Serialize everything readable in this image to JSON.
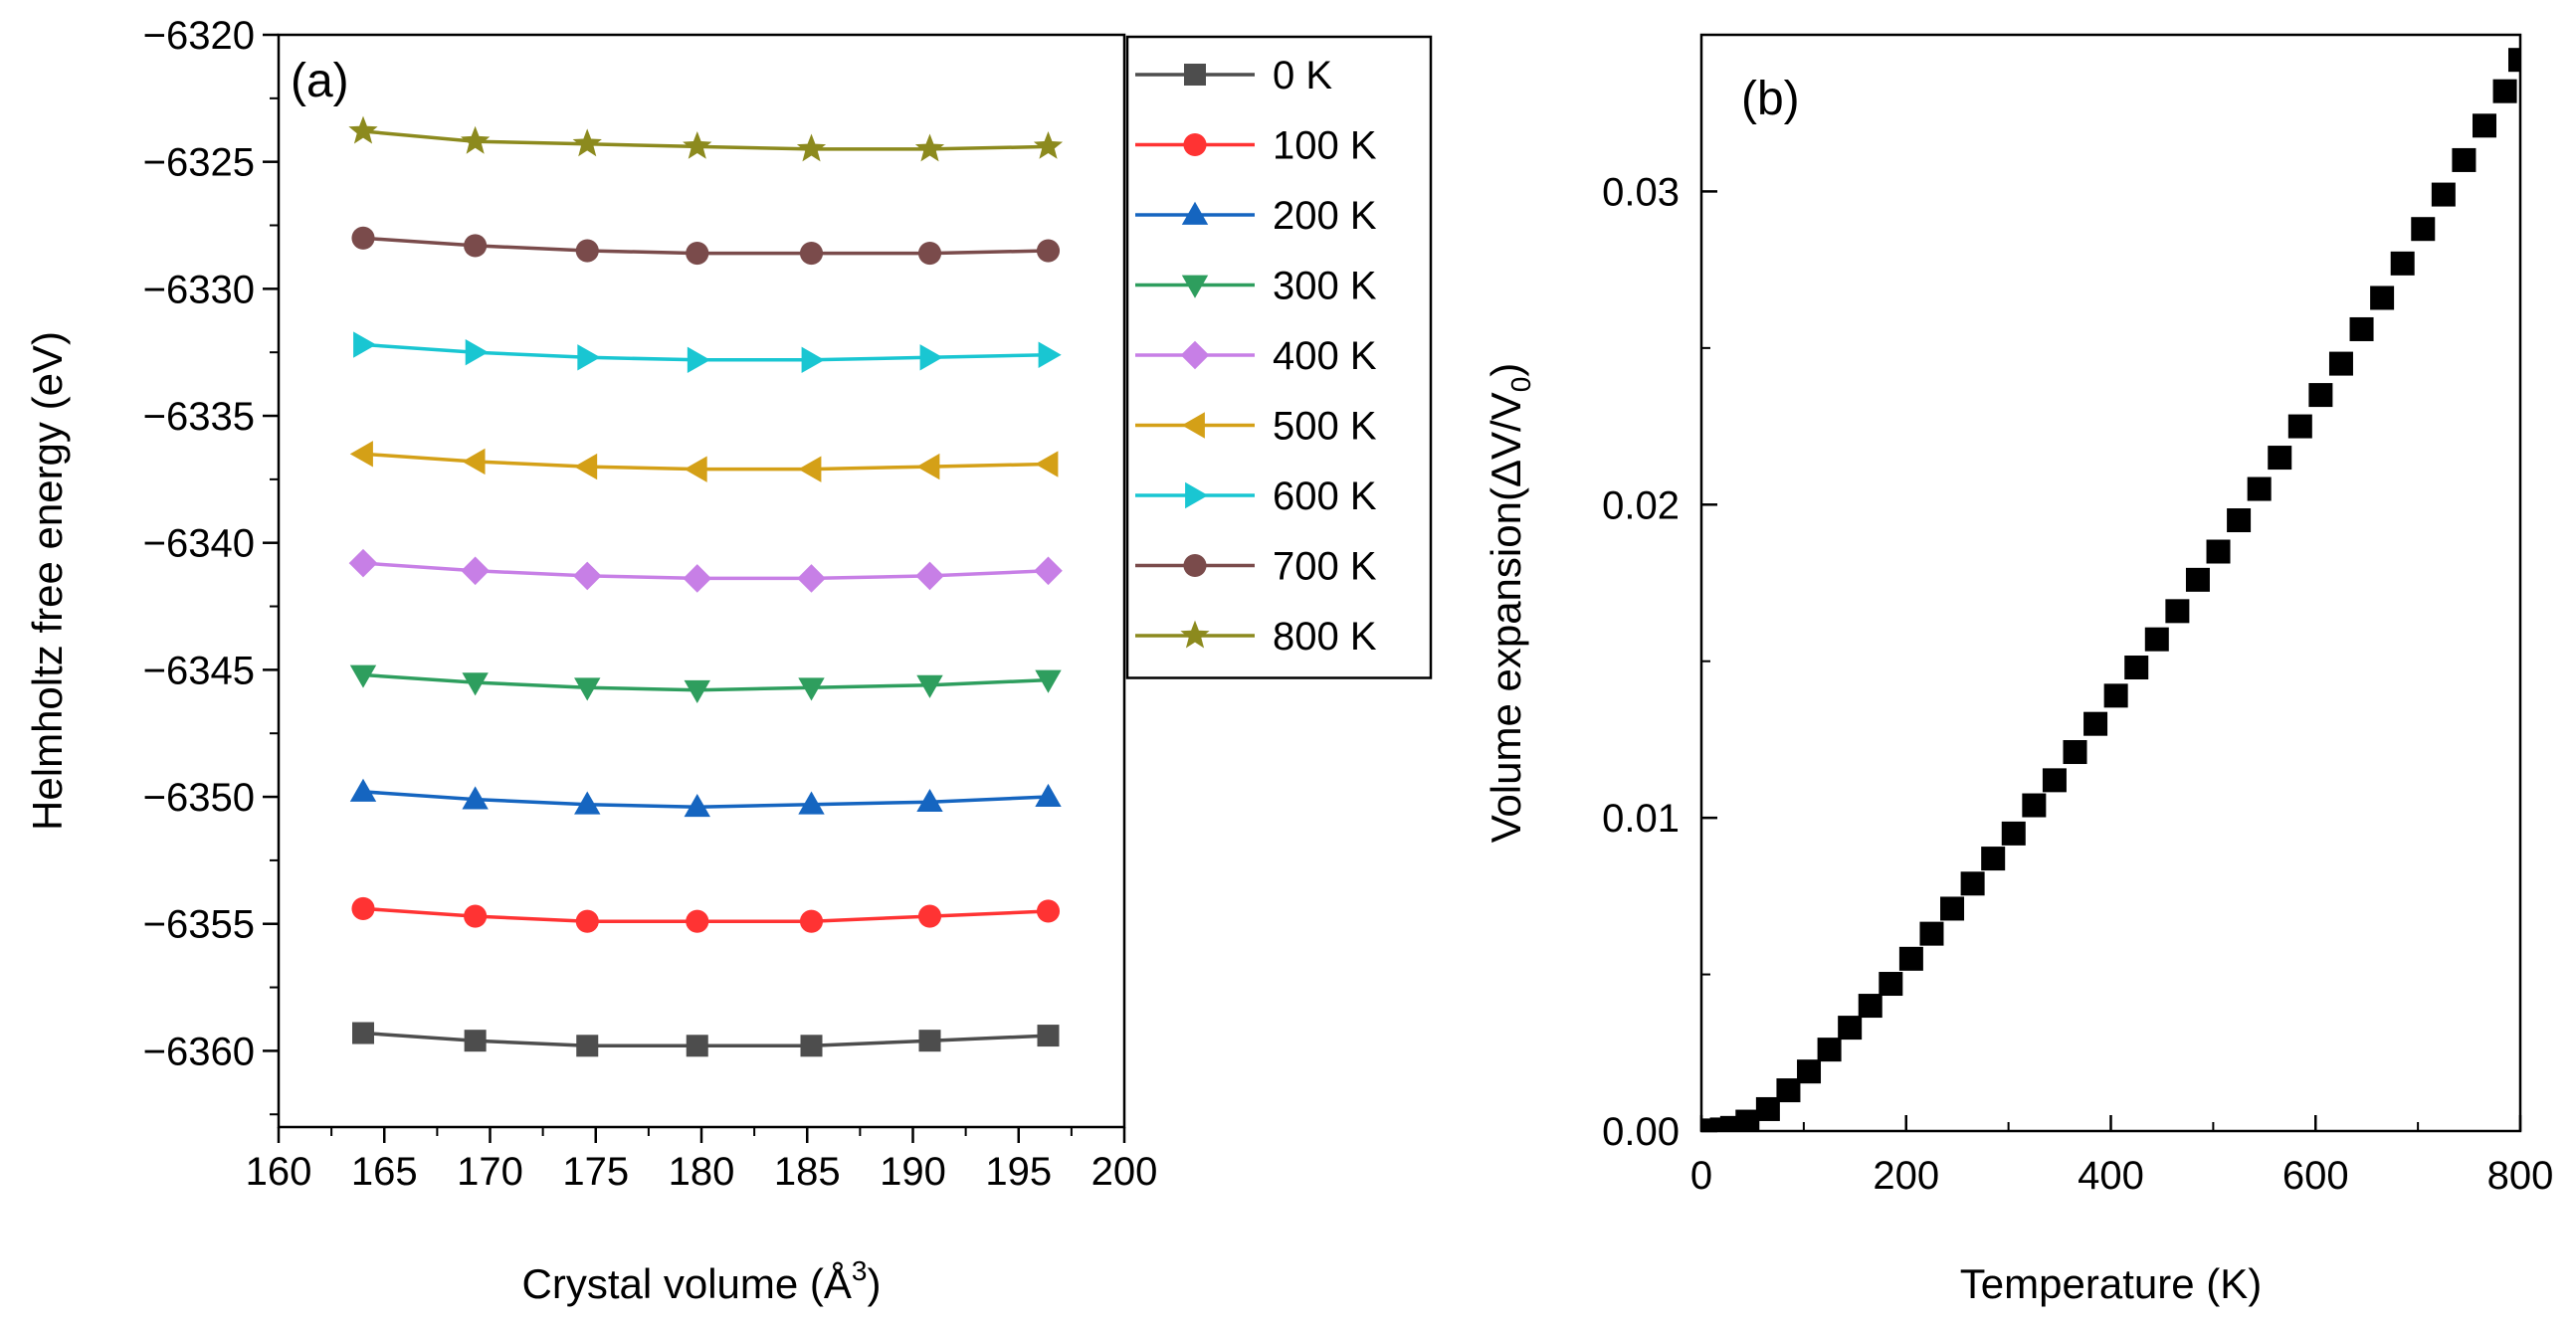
{
  "chart_data": [
    {
      "panel": "(a)",
      "type": "line",
      "xlabel": "Crystal volume (Å",
      "xlabel_sup": "3",
      "xlabel_close": ")",
      "ylabel": "Helmholtz free energy (eV)",
      "xlim": [
        160,
        200
      ],
      "ylim": [
        -6363,
        -6320
      ],
      "xticks": [
        160,
        165,
        170,
        175,
        180,
        185,
        190,
        195,
        200
      ],
      "yticks": [
        -6320,
        -6325,
        -6330,
        -6335,
        -6340,
        -6345,
        -6350,
        -6355,
        -6360
      ],
      "legend_position": "top-right",
      "x": [
        164.0,
        169.3,
        174.6,
        179.8,
        185.2,
        190.8,
        196.4
      ],
      "series": [
        {
          "name": "0 K",
          "color": "#4d4d4d",
          "marker": "square",
          "values": [
            -6359.3,
            -6359.6,
            -6359.8,
            -6359.8,
            -6359.8,
            -6359.6,
            -6359.4
          ]
        },
        {
          "name": "100 K",
          "color": "#ff3333",
          "marker": "circle",
          "values": [
            -6354.4,
            -6354.7,
            -6354.9,
            -6354.9,
            -6354.9,
            -6354.7,
            -6354.5
          ]
        },
        {
          "name": "200 K",
          "color": "#1565c0",
          "marker": "triangle-up",
          "values": [
            -6349.8,
            -6350.1,
            -6350.3,
            -6350.4,
            -6350.3,
            -6350.2,
            -6350.0
          ]
        },
        {
          "name": "300 K",
          "color": "#2e9e5e",
          "marker": "triangle-down",
          "values": [
            -6345.2,
            -6345.5,
            -6345.7,
            -6345.8,
            -6345.7,
            -6345.6,
            -6345.4
          ]
        },
        {
          "name": "400 K",
          "color": "#c77fe6",
          "marker": "diamond",
          "values": [
            -6340.8,
            -6341.1,
            -6341.3,
            -6341.4,
            -6341.4,
            -6341.3,
            -6341.1
          ]
        },
        {
          "name": "500 K",
          "color": "#d4a017",
          "marker": "triangle-left",
          "values": [
            -6336.5,
            -6336.8,
            -6337.0,
            -6337.1,
            -6337.1,
            -6337.0,
            -6336.9
          ]
        },
        {
          "name": "600 K",
          "color": "#19c6d2",
          "marker": "triangle-right",
          "values": [
            -6332.2,
            -6332.5,
            -6332.7,
            -6332.8,
            -6332.8,
            -6332.7,
            -6332.6
          ]
        },
        {
          "name": "700 K",
          "color": "#7a4b4b",
          "marker": "circle",
          "values": [
            -6328.0,
            -6328.3,
            -6328.5,
            -6328.6,
            -6328.6,
            -6328.6,
            -6328.5
          ]
        },
        {
          "name": "800 K",
          "color": "#8c8a1e",
          "marker": "star",
          "values": [
            -6323.8,
            -6324.2,
            -6324.3,
            -6324.4,
            -6324.5,
            -6324.5,
            -6324.4
          ]
        }
      ]
    },
    {
      "panel": "(b)",
      "type": "scatter",
      "xlabel": "Temperature (K)",
      "ylabel": "Volume expansion(ΔV/V",
      "ylabel_sub": "0",
      "ylabel_close": ")",
      "xlim": [
        0,
        800
      ],
      "ylim": [
        0,
        0.035
      ],
      "xticks": [
        0,
        200,
        400,
        600,
        800
      ],
      "yticks": [
        0.0,
        0.01,
        0.02,
        0.03
      ],
      "ytick_labels": [
        "0.00",
        "0.01",
        "0.02",
        "0.03"
      ],
      "series": [
        {
          "name": "Volume expansion",
          "color": "#000000",
          "marker": "square",
          "x": [
            0,
            10,
            20,
            30,
            45,
            65,
            85,
            105,
            125,
            145,
            165,
            185,
            205,
            225,
            245,
            265,
            285,
            305,
            325,
            345,
            365,
            385,
            405,
            425,
            445,
            465,
            485,
            505,
            525,
            545,
            565,
            585,
            605,
            625,
            645,
            665,
            685,
            705,
            725,
            745,
            765,
            785,
            800
          ],
          "values": [
            0.0,
            2e-05,
            5e-05,
            0.0001,
            0.0003,
            0.0007,
            0.0013,
            0.0019,
            0.0026,
            0.0033,
            0.004,
            0.0047,
            0.0055,
            0.0063,
            0.0071,
            0.0079,
            0.0087,
            0.0095,
            0.0104,
            0.0112,
            0.0121,
            0.013,
            0.0139,
            0.0148,
            0.0157,
            0.0166,
            0.0176,
            0.0185,
            0.0195,
            0.0205,
            0.0215,
            0.0225,
            0.0235,
            0.0245,
            0.0256,
            0.0266,
            0.0277,
            0.0288,
            0.0299,
            0.031,
            0.0321,
            0.0332,
            0.0342
          ]
        }
      ]
    }
  ]
}
